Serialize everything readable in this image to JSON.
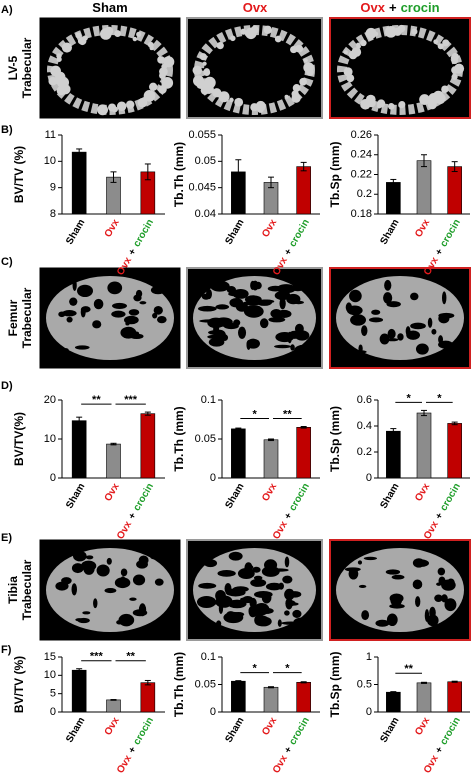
{
  "groups": [
    {
      "parts": [
        {
          "text": "Sham",
          "color": "#000000"
        }
      ]
    },
    {
      "parts": [
        {
          "text": "Ovx",
          "color": "#e31a1c"
        }
      ]
    },
    {
      "parts": [
        {
          "text": "Ovx",
          "color": "#e31a1c"
        },
        {
          "text": "+",
          "color": "#000000"
        },
        {
          "text": "crocin",
          "color": "#1f9e2a"
        }
      ]
    }
  ],
  "rows": [
    {
      "label": "A)",
      "site": [
        "LV-5",
        "Trabecular"
      ]
    },
    {
      "label": "B)"
    },
    {
      "label": "C)",
      "site": [
        "Femur",
        "Trabecular"
      ]
    },
    {
      "label": "D)"
    },
    {
      "label": "E)",
      "site": [
        "Tibia",
        "Trabecular"
      ]
    },
    {
      "label": "F)"
    }
  ],
  "chart_data": [
    {
      "type": "bar",
      "y_label": "BV/TV (%)",
      "values": [
        10.35,
        9.4,
        9.6
      ],
      "errors": [
        0.12,
        0.2,
        0.3
      ],
      "colors": [
        "#000000",
        "#8c8c8c",
        "#c00000"
      ],
      "ylim": [
        8,
        11
      ],
      "yticks": [
        8,
        9,
        10,
        11
      ]
    },
    {
      "type": "bar",
      "y_label": "Tb.Th (mm)",
      "values": [
        0.048,
        0.046,
        0.049
      ],
      "errors": [
        0.0023,
        0.001,
        0.0008
      ],
      "colors": [
        "#000000",
        "#8c8c8c",
        "#c00000"
      ],
      "ylim": [
        0.04,
        0.055
      ],
      "yticks": [
        0.04,
        0.045,
        0.05,
        0.055
      ]
    },
    {
      "type": "bar",
      "y_label": "Tb.Sp (mm)",
      "values": [
        0.212,
        0.234,
        0.228
      ],
      "errors": [
        0.003,
        0.006,
        0.005
      ],
      "colors": [
        "#000000",
        "#8c8c8c",
        "#c00000"
      ],
      "ylim": [
        0.18,
        0.26
      ],
      "yticks": [
        0.18,
        0.2,
        0.22,
        0.24,
        0.26
      ]
    },
    {
      "type": "bar",
      "y_label": "BV/TV(%)",
      "values": [
        14.7,
        8.7,
        16.5
      ],
      "errors": [
        0.9,
        0.2,
        0.4
      ],
      "colors": [
        "#000000",
        "#8c8c8c",
        "#c00000"
      ],
      "ylim": [
        0,
        20
      ],
      "yticks": [
        0,
        10,
        20
      ],
      "annotations": [
        {
          "from": 0,
          "to": 1,
          "label": "**"
        },
        {
          "from": 1,
          "to": 2,
          "label": "***"
        }
      ]
    },
    {
      "type": "bar",
      "y_label": "Tb.Th (mm)",
      "values": [
        0.063,
        0.049,
        0.065
      ],
      "errors": [
        0.001,
        0.001,
        0.001
      ],
      "colors": [
        "#000000",
        "#8c8c8c",
        "#c00000"
      ],
      "ylim": [
        0,
        0.1
      ],
      "yticks": [
        0,
        0.05,
        0.1
      ],
      "annotations": [
        {
          "from": 0,
          "to": 1,
          "label": "*"
        },
        {
          "from": 1,
          "to": 2,
          "label": "**"
        }
      ]
    },
    {
      "type": "bar",
      "y_label": "Tb.Sp (mm)",
      "values": [
        0.36,
        0.5,
        0.42
      ],
      "errors": [
        0.02,
        0.02,
        0.01
      ],
      "colors": [
        "#000000",
        "#8c8c8c",
        "#c00000"
      ],
      "ylim": [
        0,
        0.6
      ],
      "yticks": [
        0,
        0.2,
        0.4,
        0.6
      ],
      "annotations": [
        {
          "from": 0,
          "to": 1,
          "label": "*"
        },
        {
          "from": 1,
          "to": 2,
          "label": "*"
        }
      ]
    },
    {
      "type": "bar",
      "y_label": "BV/TV (%)",
      "values": [
        11.4,
        3.3,
        8.0
      ],
      "errors": [
        0.4,
        0.1,
        0.6
      ],
      "colors": [
        "#000000",
        "#8c8c8c",
        "#c00000"
      ],
      "ylim": [
        0,
        15
      ],
      "yticks": [
        0,
        5,
        10,
        15
      ],
      "annotations": [
        {
          "from": 0,
          "to": 1,
          "label": "***"
        },
        {
          "from": 1,
          "to": 2,
          "label": "**"
        }
      ]
    },
    {
      "type": "bar",
      "y_label": "Tb.Th (mm)",
      "values": [
        0.056,
        0.045,
        0.054
      ],
      "errors": [
        0.001,
        0.001,
        0.001
      ],
      "colors": [
        "#000000",
        "#8c8c8c",
        "#c00000"
      ],
      "ylim": [
        0,
        0.1
      ],
      "yticks": [
        0,
        0.05,
        0.1
      ],
      "annotations": [
        {
          "from": 0,
          "to": 1,
          "label": "*"
        },
        {
          "from": 1,
          "to": 2,
          "label": "*"
        }
      ]
    },
    {
      "type": "bar",
      "y_label": "Tb.Sp (mm)",
      "values": [
        0.36,
        0.53,
        0.55
      ],
      "errors": [
        0.01,
        0.01,
        0.01
      ],
      "colors": [
        "#000000",
        "#8c8c8c",
        "#c00000"
      ],
      "ylim": [
        0,
        1
      ],
      "yticks": [
        0,
        0.5,
        1
      ],
      "annotations": [
        {
          "from": 0,
          "to": 1,
          "label": "**"
        }
      ]
    }
  ]
}
